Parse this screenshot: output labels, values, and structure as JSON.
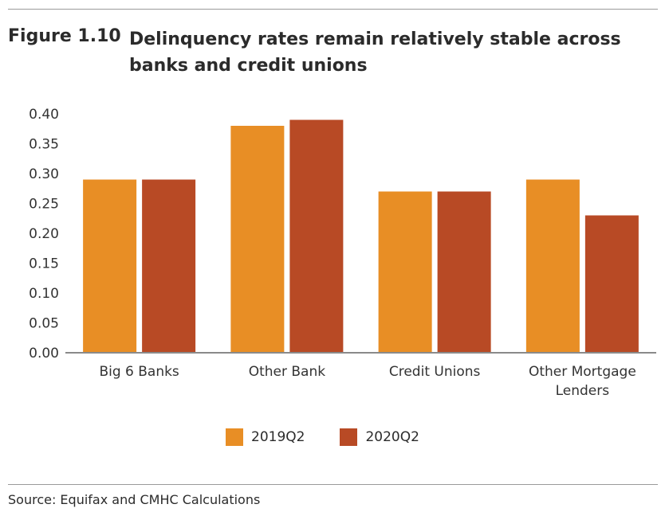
{
  "figure": {
    "label": "Figure 1.10",
    "title": "Delinquency rates remain relatively stable across banks and credit unions",
    "source": "Source: Equifax and CMHC Calculations"
  },
  "chart_data": {
    "type": "bar",
    "categories": [
      [
        "Big 6 Banks"
      ],
      [
        "Other Bank"
      ],
      [
        "Credit Unions"
      ],
      [
        "Other Mortgage",
        "Lenders"
      ]
    ],
    "series": [
      {
        "name": "2019Q2",
        "color": "#E88E25",
        "values": [
          0.29,
          0.38,
          0.27,
          0.29
        ]
      },
      {
        "name": "2020Q2",
        "color": "#B84A25",
        "values": [
          0.29,
          0.39,
          0.27,
          0.23
        ]
      }
    ],
    "yticks": [
      "0.00",
      "0.05",
      "0.10",
      "0.15",
      "0.20",
      "0.25",
      "0.30",
      "0.35",
      "0.40"
    ],
    "ylim": [
      0,
      0.4
    ],
    "xlabel": "",
    "ylabel": "",
    "grid": false,
    "legend_position": "bottom"
  }
}
